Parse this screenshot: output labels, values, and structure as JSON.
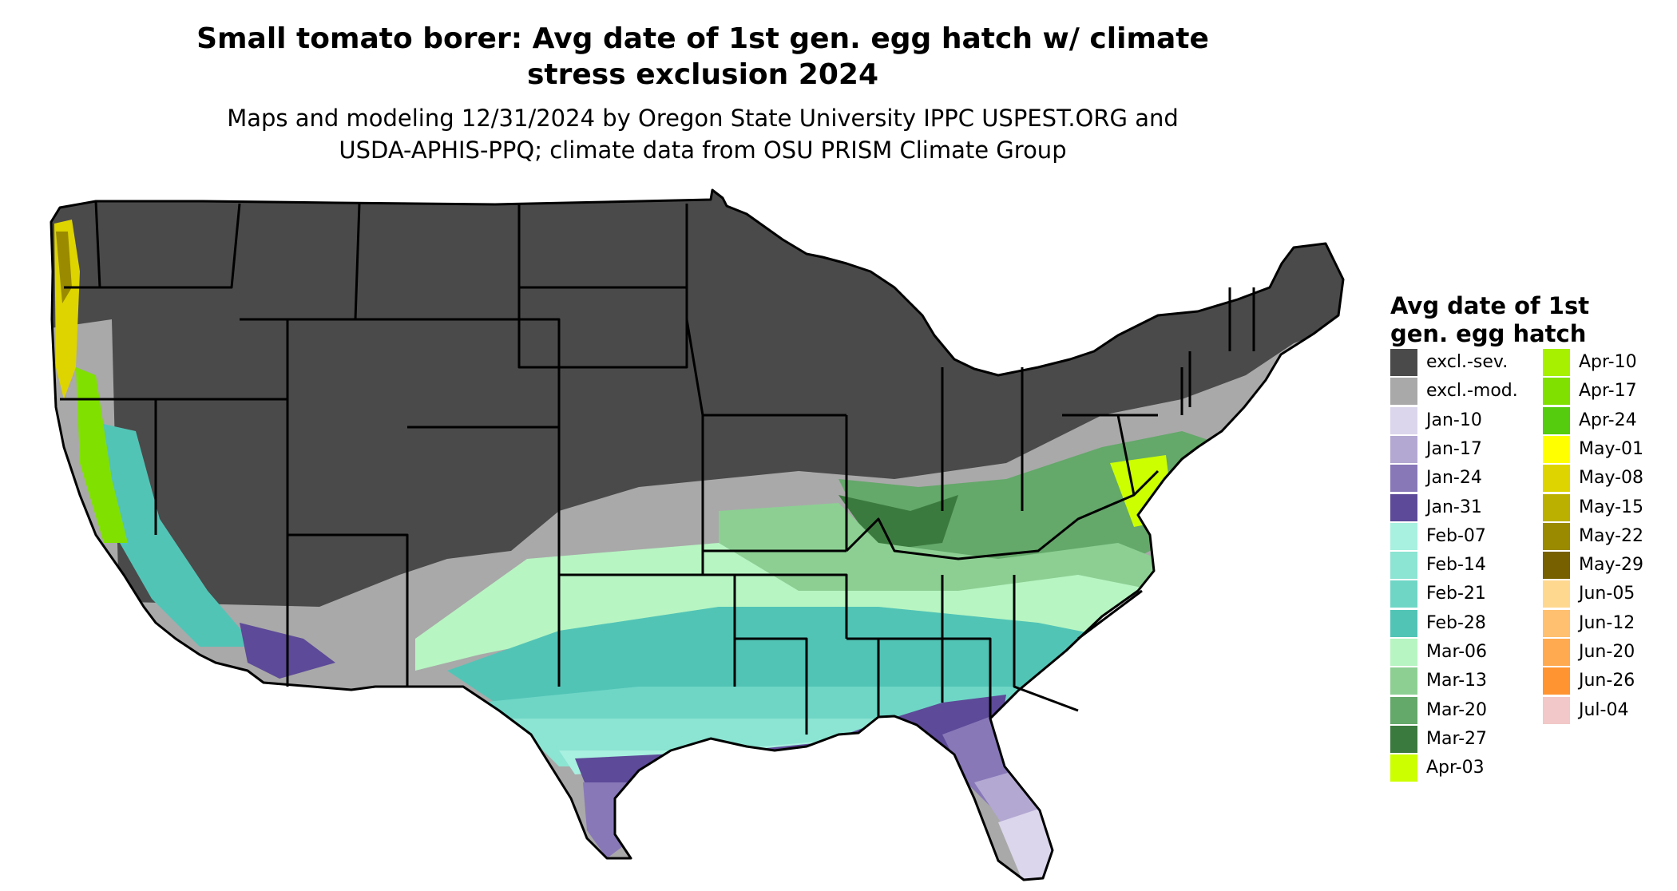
{
  "title_line1": "Small tomato borer: Avg date of 1st gen. egg hatch w/ climate",
  "title_line2": "stress exclusion 2024",
  "subtitle_line1": "Maps and modeling 12/31/2024 by Oregon State University IPPC USPEST.ORG and",
  "subtitle_line2": "USDA-APHIS-PPQ; climate data from OSU PRISM Climate Group",
  "legend": {
    "title_line1": "Avg date of 1st",
    "title_line2": "gen. egg hatch",
    "items": [
      {
        "label": "excl.-sev.",
        "color": "#4a4a4a"
      },
      {
        "label": "excl.-mod.",
        "color": "#a9a9a9"
      },
      {
        "label": "Jan-10",
        "color": "#dcd6ec"
      },
      {
        "label": "Jan-17",
        "color": "#b3a8d2"
      },
      {
        "label": "Jan-24",
        "color": "#8878b8"
      },
      {
        "label": "Jan-31",
        "color": "#5d4a98"
      },
      {
        "label": "Feb-07",
        "color": "#a8f0e0"
      },
      {
        "label": "Feb-14",
        "color": "#8ce4d2"
      },
      {
        "label": "Feb-21",
        "color": "#6fd6c6"
      },
      {
        "label": "Feb-28",
        "color": "#52c4b6"
      },
      {
        "label": "Mar-06",
        "color": "#b7f5c2"
      },
      {
        "label": "Mar-13",
        "color": "#8dcf93"
      },
      {
        "label": "Mar-20",
        "color": "#64a86a"
      },
      {
        "label": "Mar-27",
        "color": "#3b7a3e"
      },
      {
        "label": "Apr-03",
        "color": "#ccff00"
      },
      {
        "label": "Apr-10",
        "color": "#a6f000"
      },
      {
        "label": "Apr-17",
        "color": "#80e000"
      },
      {
        "label": "Apr-24",
        "color": "#55cc0e"
      },
      {
        "label": "May-01",
        "color": "#ffff00"
      },
      {
        "label": "May-08",
        "color": "#ddd400"
      },
      {
        "label": "May-15",
        "color": "#bbb000"
      },
      {
        "label": "May-22",
        "color": "#998a00"
      },
      {
        "label": "May-29",
        "color": "#776000"
      },
      {
        "label": "Jun-05",
        "color": "#ffd890"
      },
      {
        "label": "Jun-12",
        "color": "#ffc070"
      },
      {
        "label": "Jun-20",
        "color": "#ffaa50"
      },
      {
        "label": "Jun-26",
        "color": "#ff9430"
      },
      {
        "label": "Jul-04",
        "color": "#f2c8c8"
      }
    ]
  }
}
